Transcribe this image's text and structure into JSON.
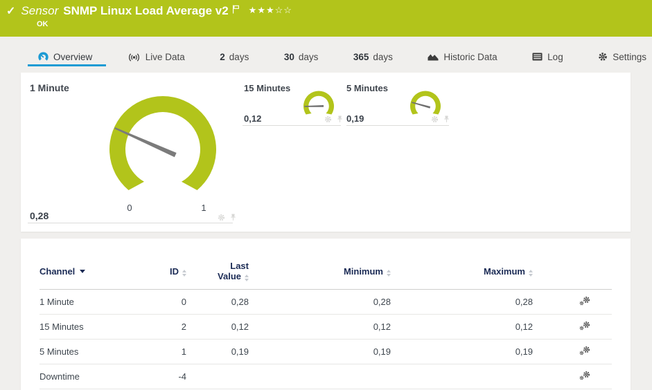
{
  "header": {
    "check": "✓",
    "type_label": "Sensor",
    "title": "SNMP Linux Load Average v2",
    "status": "OK",
    "rating_filled": "★★★",
    "rating_empty": "☆☆"
  },
  "tabs": [
    {
      "label": "Overview",
      "icon": "gauge-icon",
      "active": true
    },
    {
      "label": "Live Data",
      "icon": "live-data-icon"
    },
    {
      "number": "2",
      "label": "days"
    },
    {
      "number": "30",
      "label": "days"
    },
    {
      "number": "365",
      "label": "days"
    },
    {
      "label": "Historic Data",
      "icon": "historic-data-icon"
    },
    {
      "label": "Log",
      "icon": "log-icon"
    },
    {
      "label": "Settings",
      "icon": "gear-icon"
    }
  ],
  "gauges": {
    "primary": {
      "label": "1 Minute",
      "value": 0.28,
      "value_text": "0,28",
      "min": 0,
      "max": 1,
      "min_label": "0",
      "max_label": "1"
    },
    "secondary": [
      {
        "label": "15 Minutes",
        "value": 0.12,
        "value_text": "0,12",
        "min": 0,
        "max": 1
      },
      {
        "label": "5 Minutes",
        "value": 0.19,
        "value_text": "0,19",
        "min": 0,
        "max": 1
      }
    ]
  },
  "table": {
    "headers": {
      "channel": "Channel",
      "id": "ID",
      "last_line1": "Last",
      "last_line2": "Value",
      "minimum": "Minimum",
      "maximum": "Maximum"
    },
    "rows": [
      {
        "channel": "1 Minute",
        "id": "0",
        "last": "0,28",
        "min": "0,28",
        "max": "0,28"
      },
      {
        "channel": "15 Minutes",
        "id": "2",
        "last": "0,12",
        "min": "0,12",
        "max": "0,12"
      },
      {
        "channel": "5 Minutes",
        "id": "1",
        "last": "0,19",
        "min": "0,19",
        "max": "0,19"
      },
      {
        "channel": "Downtime",
        "id": "-4",
        "last": "",
        "min": "",
        "max": ""
      }
    ]
  },
  "colors": {
    "accent_green": "#b2c41b",
    "accent_blue": "#1d9bd4",
    "navy": "#1b2b55",
    "needle_gray": "#7b7b7b"
  }
}
